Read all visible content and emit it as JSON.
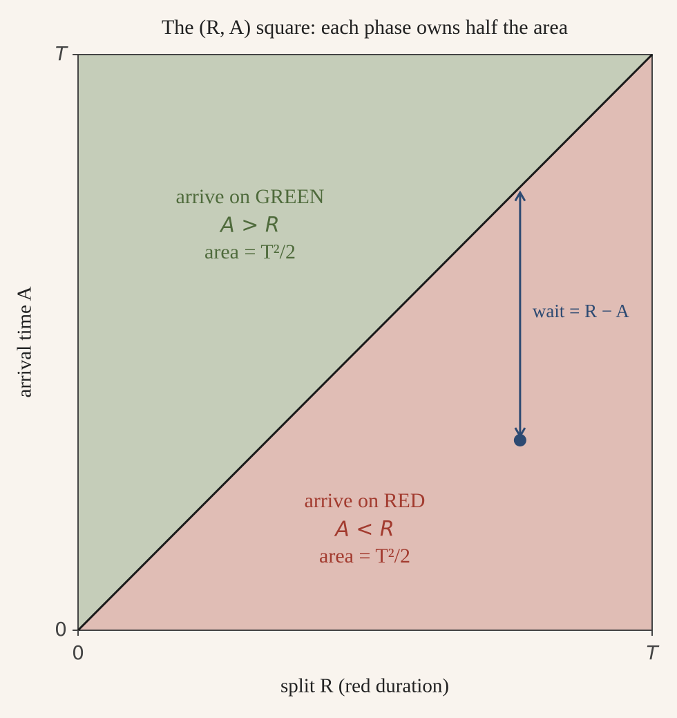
{
  "chart_data": {
    "type": "phase-square",
    "title": "The (R, A) square: each phase owns half the area",
    "x_label": "split  R  (red duration)",
    "y_label": "arrival time  A",
    "xlim": [
      0,
      1
    ],
    "ylim": [
      0,
      1
    ],
    "xticks": [
      0,
      {
        "value": 1,
        "label": "T"
      }
    ],
    "yticks": [
      0,
      {
        "value": 1,
        "label": "T"
      }
    ],
    "regions": [
      {
        "lines": [
          "arrive on GREEN",
          "A > R",
          "area = T²/2"
        ],
        "color": "#c5cdb9",
        "text_color": "#4f6b3c"
      },
      {
        "lines": [
          "arrive on RED",
          "A < R",
          "area = T²/2"
        ],
        "color": "#e0bdb5",
        "text_color": "#a23b2f"
      }
    ],
    "point": {
      "x": 0.77,
      "y": 0.33,
      "color": "#2d4a72"
    },
    "wait_label": "wait = R − A"
  }
}
